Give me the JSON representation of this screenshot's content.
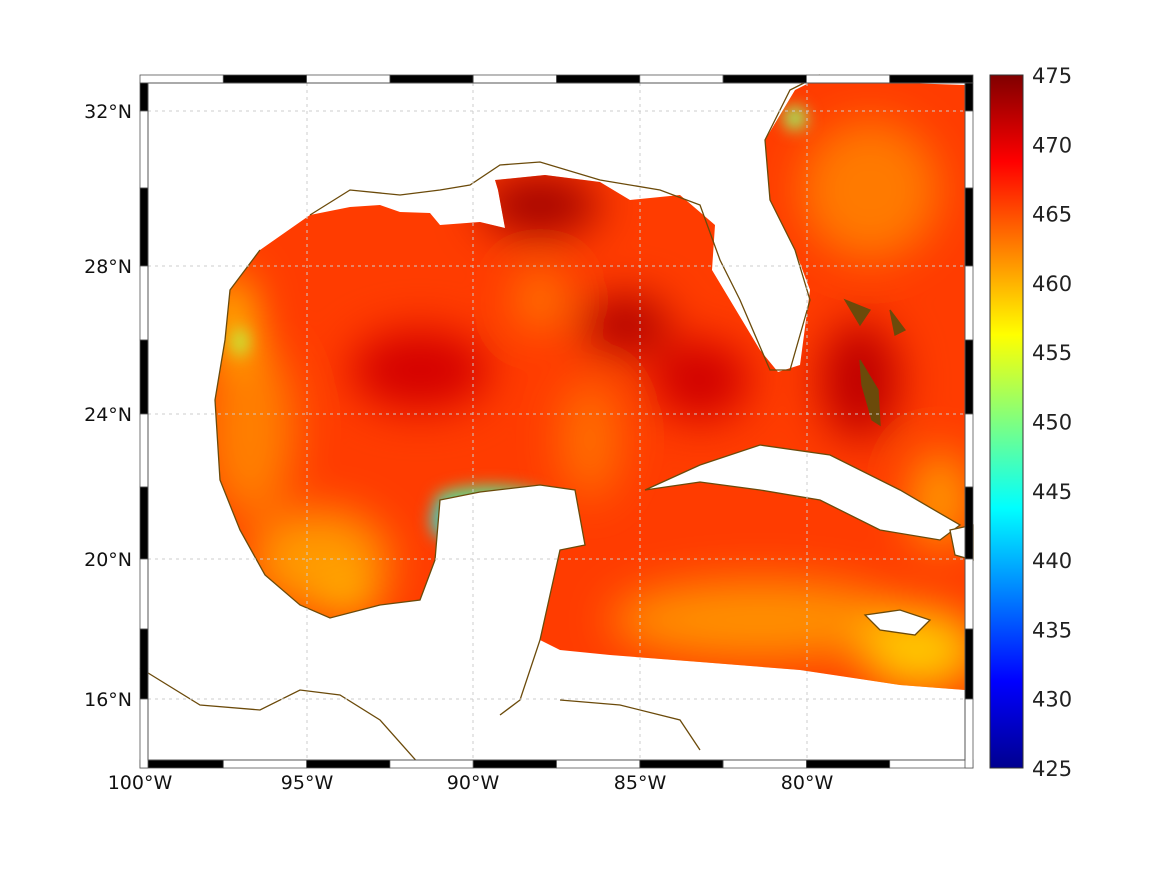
{
  "map": {
    "x_tick_labels": [
      "100°W",
      "95°W",
      "90°W",
      "85°W",
      "80°W"
    ],
    "y_tick_labels": [
      "32°N",
      "28°N",
      "24°N",
      "20°N",
      "16°N"
    ],
    "coast_color": "#6b4a0a"
  },
  "colorbar": {
    "colormap": "jet",
    "range": [
      425,
      475
    ],
    "tick_labels": [
      "475",
      "470",
      "465",
      "460",
      "455",
      "450",
      "445",
      "440",
      "435",
      "430",
      "425"
    ]
  }
}
